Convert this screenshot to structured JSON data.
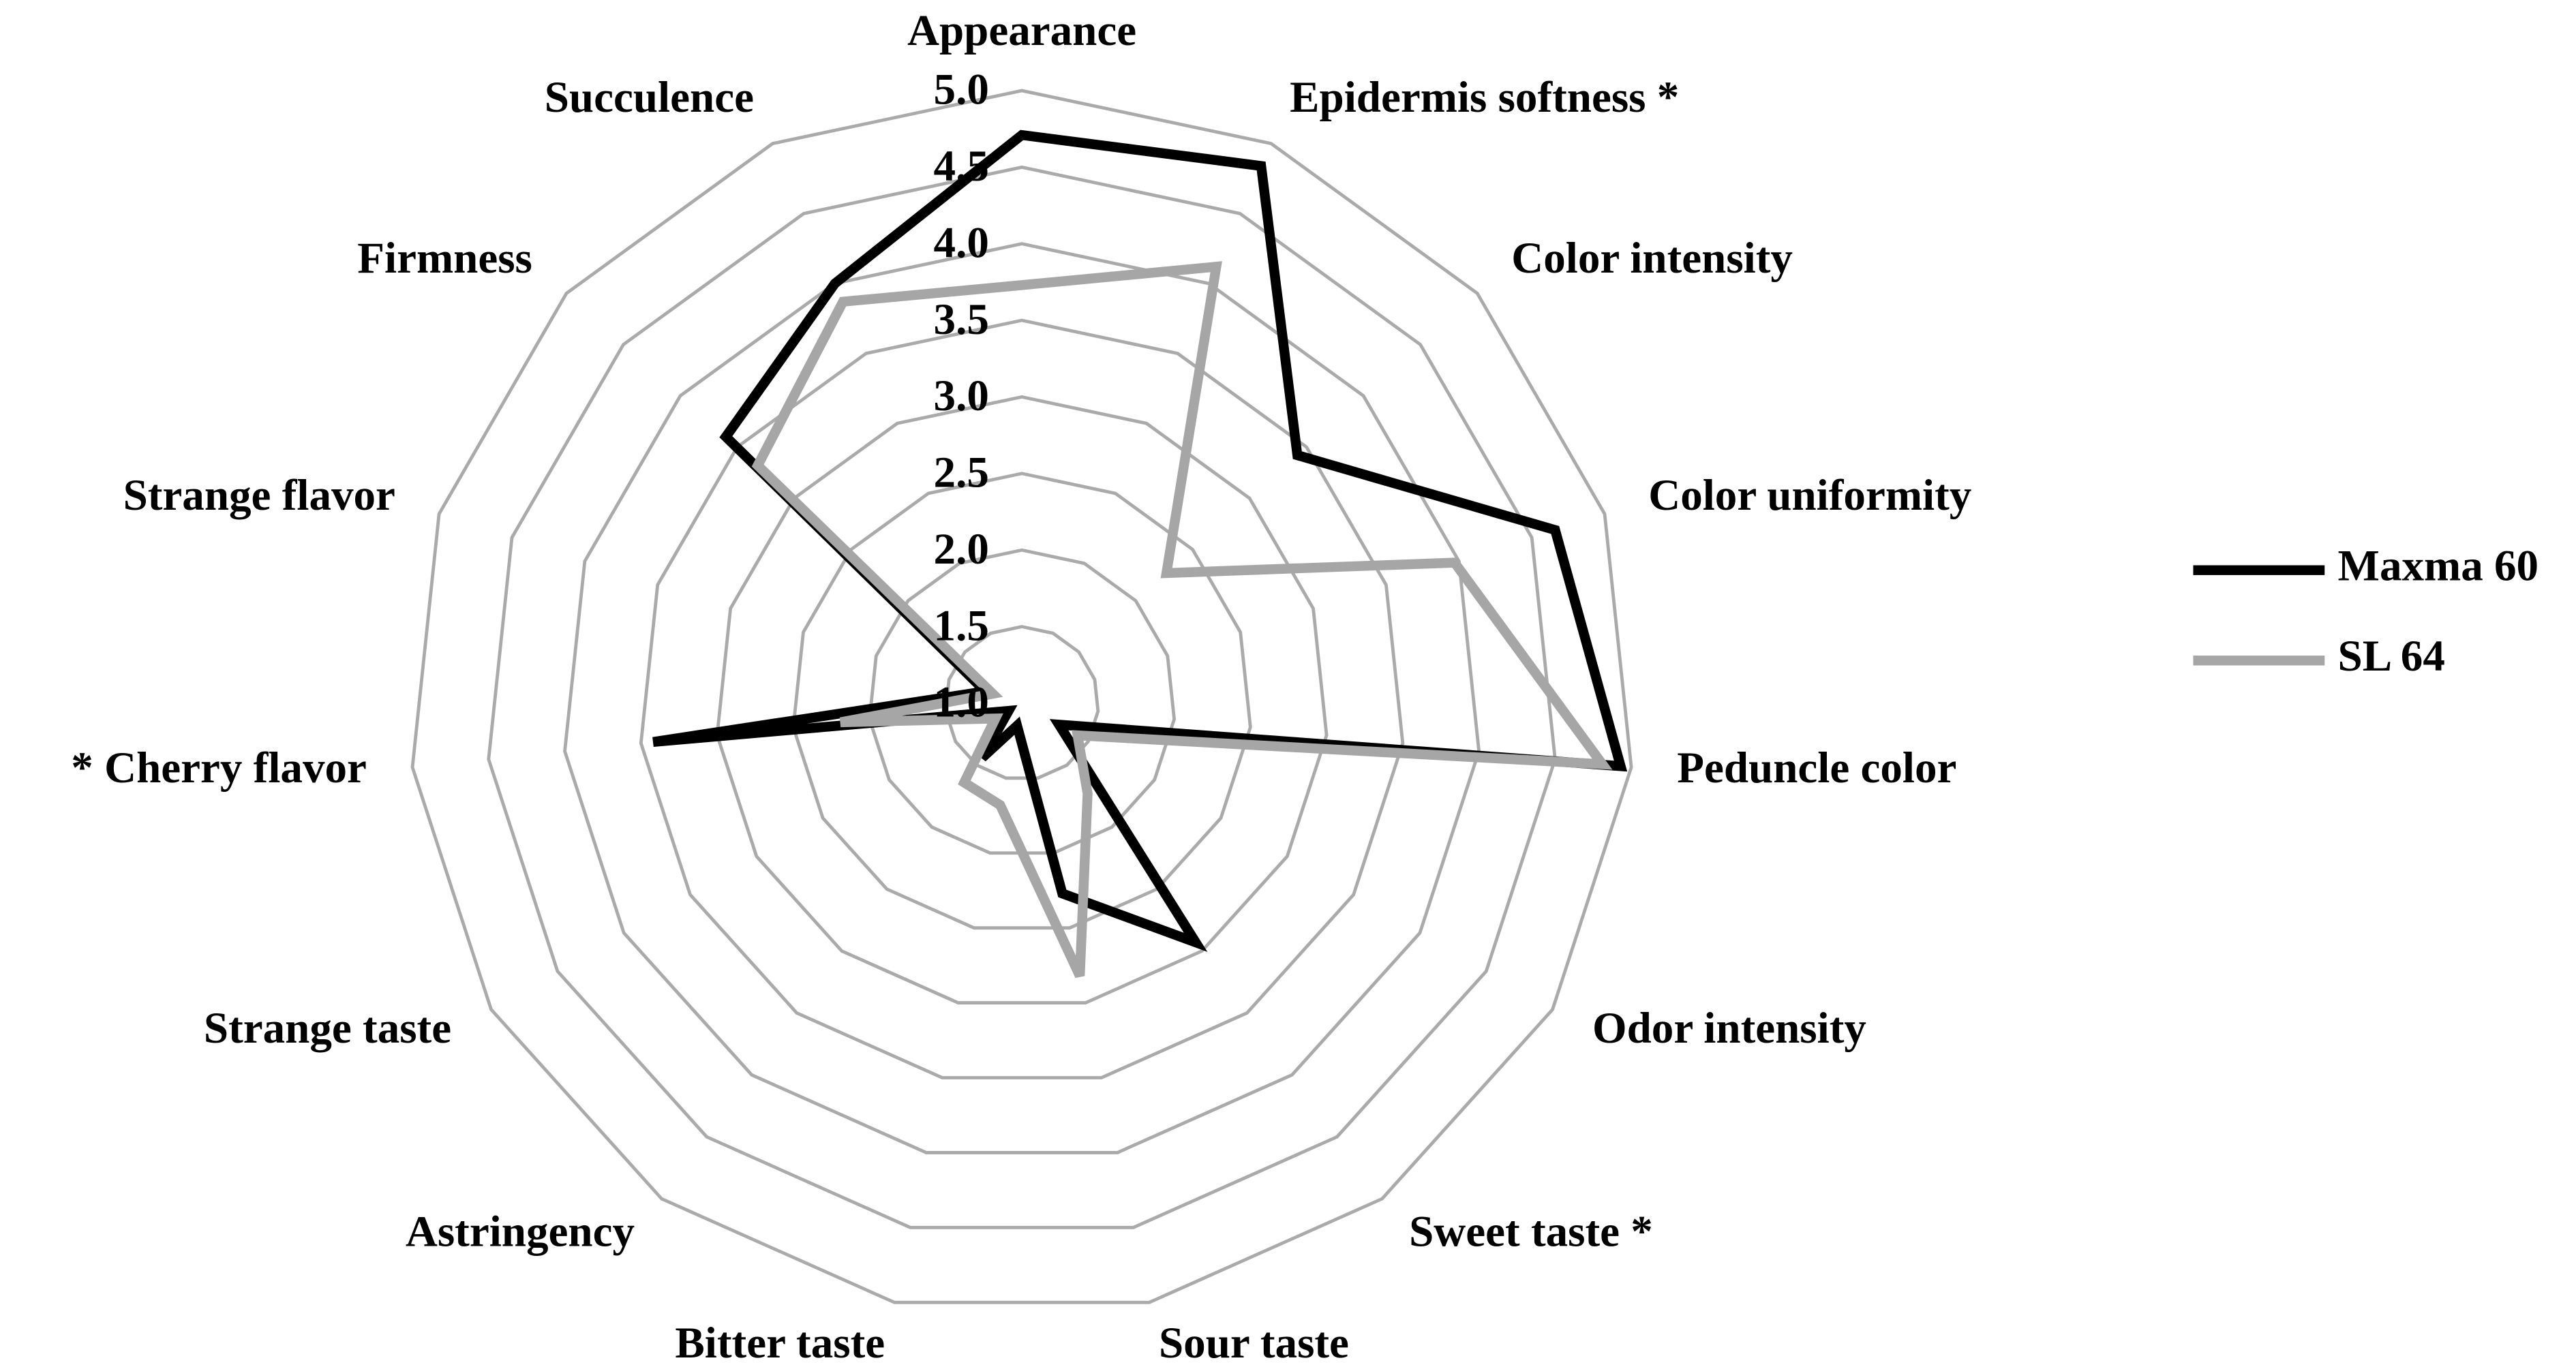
{
  "chart_data": {
    "type": "radar",
    "categories": [
      "Appearance",
      "Epidermis softness *",
      "Color intensity",
      "Color uniformity",
      "Peduncle color",
      "Odor intensity",
      "Sweet taste *",
      "Sour taste",
      "Bitter taste",
      "Astringency",
      "Strange taste",
      "* Cherry flavor",
      "Strange flavor",
      "Firmness",
      "Succulence"
    ],
    "series": [
      {
        "name": "Maxma 60",
        "color": "#000000",
        "values": [
          4.71,
          4.84,
          3.42,
          4.66,
          4.93,
          1.28,
          2.93,
          2.27,
          1.15,
          1.44,
          1.1,
          3.42,
          1.25,
          3.6,
          4.0
        ]
      },
      {
        "name": "SL 64",
        "color": "#a6a6a6",
        "values": [
          3.73,
          4.12,
          2.27,
          3.97,
          4.81,
          1.42,
          1.73,
          2.82,
          1.68,
          1.64,
          1.2,
          2.19,
          1.2,
          3.32,
          3.87
        ]
      }
    ],
    "ylim": [
      1,
      5
    ],
    "yticks": [
      {
        "value": 1,
        "label": "1.0"
      },
      1.5,
      {
        "value": 2,
        "label": "2.0"
      },
      2.5,
      {
        "value": 3,
        "label": "3.0"
      },
      3.5,
      {
        "value": 4,
        "label": "4.0"
      },
      4.5,
      {
        "value": 5,
        "label": "5.0"
      }
    ],
    "grid": true,
    "grid_color": "#aaaaaa",
    "legend": "right"
  }
}
